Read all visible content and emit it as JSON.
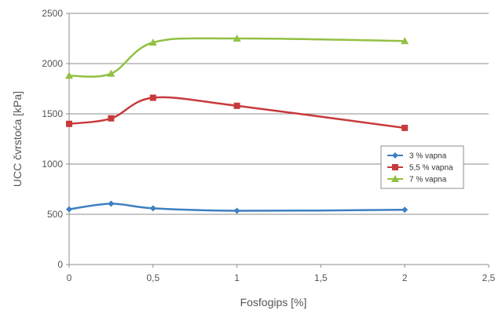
{
  "chart_data": {
    "type": "line",
    "xlabel": "Fosfogips [%]",
    "ylabel": "UCC čvrstoća [kPa]",
    "xlim": [
      0,
      2.5
    ],
    "ylim": [
      0,
      2500
    ],
    "x_ticks": [
      "0",
      "0,5",
      "1",
      "1,5",
      "2",
      "2,5"
    ],
    "y_ticks": [
      "0",
      "500",
      "1000",
      "1500",
      "2000",
      "2500"
    ],
    "grid": "horizontal",
    "legend_position": "right",
    "series": [
      {
        "name": "3 % vapna",
        "color": "#3d7fc1",
        "marker": "diamond",
        "x": [
          0,
          0.25,
          0.5,
          1,
          2
        ],
        "values": [
          550,
          605,
          560,
          535,
          545
        ]
      },
      {
        "name": "5,5 % vapna",
        "color": "#c8393b",
        "marker": "square",
        "x": [
          0,
          0.25,
          0.5,
          1,
          2
        ],
        "values": [
          1400,
          1455,
          1660,
          1580,
          1360
        ]
      },
      {
        "name": "7 % vapna",
        "color": "#92c044",
        "marker": "triangle",
        "x": [
          0,
          0.25,
          0.5,
          1,
          2
        ],
        "values": [
          1880,
          1900,
          2210,
          2250,
          2225
        ]
      }
    ]
  }
}
